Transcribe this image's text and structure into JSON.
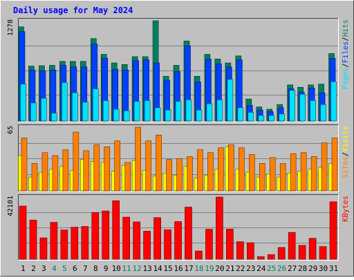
{
  "chart_data": [
    {
      "type": "bar",
      "title": "Daily usage for May 2024",
      "ymax_label": "1278",
      "ylim": [
        0,
        1278
      ],
      "legend": [
        {
          "label": "Pages",
          "color": "#00e0ff"
        },
        {
          "label": "/",
          "color": "#000000"
        },
        {
          "label": "Files",
          "color": "#0040ff"
        },
        {
          "label": "/",
          "color": "#000000"
        },
        {
          "label": "Hits",
          "color": "#008060"
        }
      ],
      "series": [
        {
          "name": "Hits",
          "color": "#008060",
          "values": [
            1200,
            700,
            705,
            710,
            760,
            760,
            760,
            1050,
            850,
            740,
            720,
            820,
            820,
            1278,
            570,
            710,
            1020,
            570,
            850,
            790,
            740,
            830,
            280,
            180,
            150,
            210,
            460,
            430,
            460,
            470,
            860
          ]
        },
        {
          "name": "Files",
          "color": "#0040ff",
          "values": [
            1140,
            650,
            640,
            650,
            710,
            690,
            690,
            980,
            800,
            660,
            650,
            770,
            780,
            740,
            520,
            630,
            960,
            500,
            790,
            730,
            690,
            780,
            200,
            140,
            120,
            170,
            410,
            370,
            420,
            360,
            800
          ]
        },
        {
          "name": "Pages",
          "color": "#00e0ff",
          "values": [
            470,
            230,
            290,
            100,
            490,
            360,
            240,
            410,
            260,
            150,
            130,
            250,
            260,
            170,
            140,
            250,
            270,
            140,
            220,
            270,
            530,
            170,
            110,
            70,
            70,
            90,
            390,
            340,
            260,
            210,
            500
          ]
        }
      ]
    },
    {
      "type": "bar",
      "ymax_label": "65",
      "ylim": [
        0,
        65
      ],
      "legend": [
        {
          "label": "Sites",
          "color": "#ff8000"
        },
        {
          "label": "/",
          "color": "#000000"
        },
        {
          "label": "Visits",
          "color": "#ffff00"
        }
      ],
      "series": [
        {
          "name": "Visits",
          "color": "#ffff00",
          "values": [
            36,
            14,
            19,
            22,
            25,
            21,
            32,
            30,
            29,
            20,
            26,
            31,
            21,
            15,
            18,
            16,
            25,
            13,
            16,
            22,
            45,
            22,
            19,
            14,
            17,
            14,
            18,
            20,
            22,
            24,
            28
          ]
        },
        {
          "name": "Sites",
          "color": "#ff8000",
          "values": [
            54,
            28,
            39,
            36,
            42,
            60,
            41,
            47,
            45,
            51,
            29,
            65,
            51,
            57,
            32,
            33,
            35,
            42,
            39,
            44,
            47,
            44,
            37,
            28,
            34,
            28,
            38,
            39,
            35,
            49,
            54
          ]
        }
      ]
    },
    {
      "type": "bar",
      "ymax_label": "42101",
      "ylim": [
        0,
        42101
      ],
      "legend": [
        {
          "label": "KBytes",
          "color": "#ff0000"
        }
      ],
      "series": [
        {
          "name": "KBytes",
          "color": "#ff0000",
          "values": [
            36000,
            26500,
            14500,
            25000,
            19800,
            21700,
            22200,
            31700,
            32700,
            39600,
            28500,
            25300,
            19000,
            28200,
            20000,
            25500,
            35300,
            5600,
            20300,
            42101,
            20400,
            11900,
            11200,
            1800,
            3200,
            8000,
            18200,
            9400,
            14200,
            8600,
            38900
          ]
        }
      ]
    }
  ],
  "x_labels": [
    "1",
    "2",
    "3",
    "4",
    "5",
    "6",
    "7",
    "8",
    "9",
    "10",
    "11",
    "12",
    "13",
    "14",
    "15",
    "16",
    "17",
    "18",
    "19",
    "20",
    "21",
    "22",
    "23",
    "24",
    "25",
    "26",
    "27",
    "28",
    "29",
    "30",
    "31"
  ],
  "weekend_days": [
    "4",
    "5",
    "11",
    "12",
    "18",
    "19",
    "25",
    "26"
  ],
  "colors": {
    "title": "#0000ff",
    "weekday_label": "#000000",
    "weekend_label": "#008060",
    "panel_bg": "#c0c0c0",
    "frame_bg": "#c0c0c0",
    "grid": "#808080"
  }
}
